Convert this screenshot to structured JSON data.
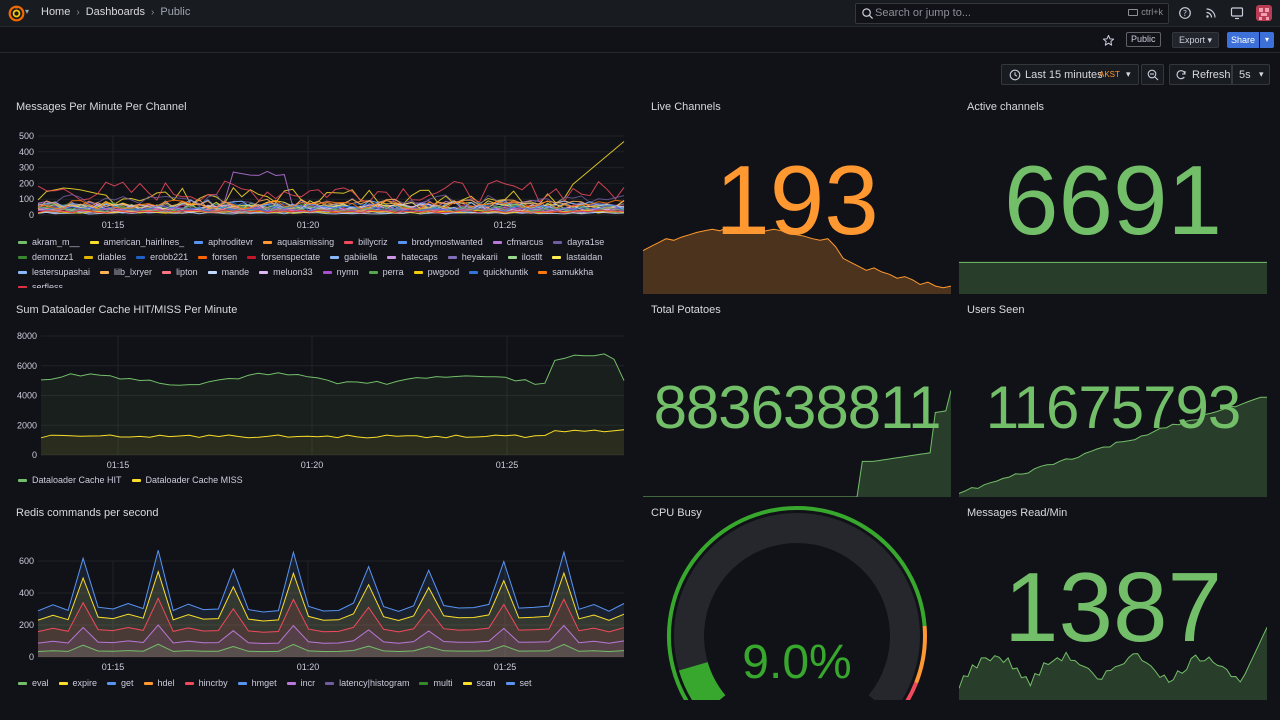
{
  "topbar": {
    "breadcrumbs": [
      "Home",
      "Dashboards",
      "Public"
    ],
    "search_placeholder": "Search or jump to...",
    "search_shortcut": "ctrl+k"
  },
  "subbar": {
    "public_label": "Public",
    "export_label": "Export",
    "share_label": "Share"
  },
  "timecontrols": {
    "range_label": "Last 15 minutes",
    "timezone": "AKST",
    "refresh_label": "Refresh",
    "interval": "5s"
  },
  "colors": {
    "green": "#73bf69",
    "orange": "#ff9830",
    "yellow": "#fade2a",
    "blue": "#5794f2",
    "red": "#f2495c",
    "purple": "#b877d9"
  },
  "panels": {
    "messages_per_minute": {
      "title": "Messages Per Minute Per Channel",
      "yticks": [
        "500",
        "400",
        "300",
        "200",
        "100",
        "0"
      ],
      "xticks": [
        "01:15",
        "01:20",
        "01:25"
      ],
      "legend": [
        {
          "name": "akram_m__",
          "color": "#73bf69"
        },
        {
          "name": "american_hairlines_",
          "color": "#fade2a"
        },
        {
          "name": "aphroditevr",
          "color": "#5794f2"
        },
        {
          "name": "aquaismissing",
          "color": "#ff9830"
        },
        {
          "name": "billycriz",
          "color": "#f2495c"
        },
        {
          "name": "brodymostwanted",
          "color": "#5794f2"
        },
        {
          "name": "cfmarcus",
          "color": "#b877d9"
        },
        {
          "name": "dayra1se",
          "color": "#705da0"
        },
        {
          "name": "demonzz1",
          "color": "#37872d"
        },
        {
          "name": "diables",
          "color": "#e0b400"
        },
        {
          "name": "erobb221",
          "color": "#1f60c4"
        },
        {
          "name": "forsen",
          "color": "#fa6400"
        },
        {
          "name": "forsenspectate",
          "color": "#c4162a"
        },
        {
          "name": "gabiiella",
          "color": "#8ab8ff"
        },
        {
          "name": "hatecaps",
          "color": "#ca95e5"
        },
        {
          "name": "heyakarii",
          "color": "#806eb7"
        },
        {
          "name": "ilostlt",
          "color": "#96d98d"
        },
        {
          "name": "lastaidan",
          "color": "#ffee52"
        },
        {
          "name": "lestersupashai",
          "color": "#8ab8ff"
        },
        {
          "name": "lilb_lxryer",
          "color": "#ffb357"
        },
        {
          "name": "lipton",
          "color": "#ff7383"
        },
        {
          "name": "mande",
          "color": "#c0d8ff"
        },
        {
          "name": "meluon33",
          "color": "#deb6f2"
        },
        {
          "name": "nymn",
          "color": "#a352cc"
        },
        {
          "name": "perra",
          "color": "#56a64b"
        },
        {
          "name": "pwgood",
          "color": "#f2cc0c"
        },
        {
          "name": "quickhuntik",
          "color": "#3274d9"
        },
        {
          "name": "samukkha",
          "color": "#ff780a"
        },
        {
          "name": "serfless",
          "color": "#e02f44"
        }
      ]
    },
    "live_channels": {
      "title": "Live Channels",
      "value": "193",
      "color": "#ff9830",
      "spark": [
        0.55,
        0.6,
        0.65,
        0.7,
        0.68,
        0.72,
        0.75,
        0.78,
        0.8,
        0.82,
        0.8,
        0.85,
        0.82,
        0.8,
        0.83,
        0.78,
        0.8,
        0.82,
        0.8,
        0.76,
        0.75,
        0.73,
        0.7,
        0.68,
        0.7,
        0.6,
        0.45,
        0.4,
        0.35,
        0.3,
        0.33,
        0.28,
        0.25,
        0.2,
        0.22,
        0.18,
        0.12,
        0.15,
        0.1,
        0.08,
        0.1
      ]
    },
    "active_channels": {
      "title": "Active channels",
      "value": "6691",
      "color": "#73bf69",
      "spark": [
        0.9,
        0.9,
        0.9,
        0.9,
        0.9,
        0.9,
        0.9,
        0.9,
        0.9,
        0.9
      ]
    },
    "dataloader": {
      "title": "Sum Dataloader Cache HIT/MISS Per Minute",
      "yticks": [
        "8000",
        "6000",
        "4000",
        "2000",
        "0"
      ],
      "xticks": [
        "01:15",
        "01:20",
        "01:25"
      ],
      "legend": [
        {
          "name": "Dataloader Cache HIT",
          "color": "#73bf69"
        },
        {
          "name": "Dataloader Cache MISS",
          "color": "#fade2a"
        }
      ]
    },
    "total_potatoes": {
      "title": "Total Potatoes",
      "value": "883638811",
      "color": "#73bf69"
    },
    "users_seen": {
      "title": "Users Seen",
      "value": "11675793",
      "color": "#73bf69"
    },
    "redis": {
      "title": "Redis commands per second",
      "yticks": [
        "600",
        "400",
        "200",
        "0"
      ],
      "xticks": [
        "01:15",
        "01:20",
        "01:25"
      ],
      "legend": [
        {
          "name": "eval",
          "color": "#73bf69"
        },
        {
          "name": "expire",
          "color": "#fade2a"
        },
        {
          "name": "get",
          "color": "#5794f2"
        },
        {
          "name": "hdel",
          "color": "#ff9830"
        },
        {
          "name": "hincrby",
          "color": "#f2495c"
        },
        {
          "name": "hmget",
          "color": "#5794f2"
        },
        {
          "name": "incr",
          "color": "#b877d9"
        },
        {
          "name": "latency|histogram",
          "color": "#705da0"
        },
        {
          "name": "multi",
          "color": "#37872d"
        },
        {
          "name": "scan",
          "color": "#fade2a"
        },
        {
          "name": "set",
          "color": "#5794f2"
        }
      ]
    },
    "cpu_busy": {
      "title": "CPU Busy",
      "value": "9.0%",
      "fraction": 0.09,
      "color": "#37a82d"
    },
    "messages_read": {
      "title": "Messages Read/Min",
      "value": "1387",
      "color": "#73bf69"
    }
  }
}
